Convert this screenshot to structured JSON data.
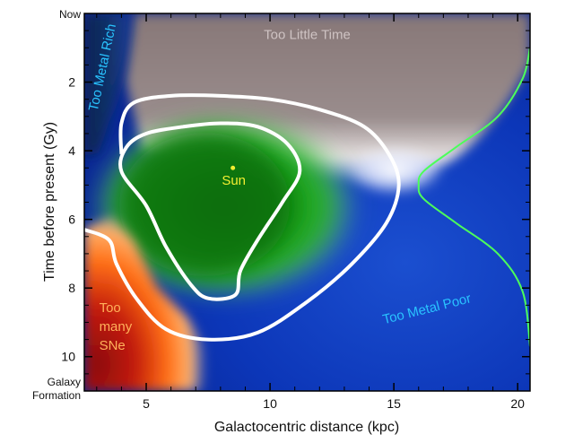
{
  "chart_data": {
    "type": "heatmap",
    "title": "",
    "xlabel": "Galactocentric distance (kpc)",
    "ylabel": "Time before present (Gy)",
    "xlim": [
      2.5,
      20.5
    ],
    "ylim": [
      0,
      11
    ],
    "y_inverted": true,
    "x_ticks": [
      5,
      10,
      15,
      20
    ],
    "y_ticks": [
      2,
      4,
      6,
      8,
      10
    ],
    "y_end_labels": [
      {
        "y": 0,
        "text": "Now"
      },
      {
        "y": 11,
        "text": "Galaxy Formation"
      }
    ],
    "regions": [
      {
        "name": "too_little_time",
        "label": "Too Little Time",
        "color": "#cfc3c3",
        "x": 11.5,
        "y": 0.75
      },
      {
        "name": "too_metal_rich",
        "label": "Too Metal Rich",
        "color": "#29c3ff",
        "x": 3.4,
        "y": 1.6,
        "rotate": -78
      },
      {
        "name": "too_metal_poor",
        "label": "Too Metal Poor",
        "color": "#29c3ff",
        "x": 14.6,
        "y": 9.05,
        "rotate": -14
      },
      {
        "name": "too_many_sne",
        "label": [
          "Too",
          "many",
          "SNe"
        ],
        "color": "#ffb15a",
        "x": 3.1,
        "y": 8.7
      }
    ],
    "sun": {
      "label": "Sun",
      "x": 8.5,
      "y": 4.5,
      "color": "#f2ee31"
    },
    "contours": {
      "outer": [
        [
          4.0,
          4.1
        ],
        [
          4.0,
          3.2
        ],
        [
          4.5,
          2.6
        ],
        [
          6.0,
          2.4
        ],
        [
          8.0,
          2.4
        ],
        [
          10.0,
          2.5
        ],
        [
          12.0,
          2.8
        ],
        [
          13.8,
          3.3
        ],
        [
          14.8,
          4.1
        ],
        [
          15.2,
          5.0
        ],
        [
          14.7,
          6.1
        ],
        [
          13.3,
          7.3
        ],
        [
          11.5,
          8.4
        ],
        [
          9.5,
          9.3
        ],
        [
          7.5,
          9.5
        ],
        [
          5.8,
          9.2
        ],
        [
          4.6,
          8.3
        ],
        [
          3.8,
          7.3
        ],
        [
          3.5,
          6.6
        ],
        [
          2.5,
          6.3
        ]
      ],
      "inner": [
        [
          4.0,
          4.6
        ],
        [
          4.2,
          3.9
        ],
        [
          5.0,
          3.5
        ],
        [
          6.5,
          3.3
        ],
        [
          8.0,
          3.2
        ],
        [
          9.5,
          3.3
        ],
        [
          10.7,
          3.8
        ],
        [
          11.2,
          4.6
        ],
        [
          10.5,
          5.5
        ],
        [
          9.5,
          6.6
        ],
        [
          8.8,
          7.5
        ],
        [
          8.6,
          8.2
        ],
        [
          7.5,
          8.3
        ],
        [
          6.8,
          7.9
        ],
        [
          5.8,
          6.8
        ],
        [
          5.0,
          5.6
        ]
      ],
      "green_curve": [
        [
          20.5,
          1.0
        ],
        [
          20.2,
          1.9
        ],
        [
          19.2,
          3.0
        ],
        [
          17.5,
          3.9
        ],
        [
          16.2,
          4.6
        ],
        [
          16.0,
          5.0
        ],
        [
          16.2,
          5.4
        ],
        [
          17.5,
          6.1
        ],
        [
          19.2,
          7.0
        ],
        [
          20.2,
          8.1
        ],
        [
          20.5,
          9.7
        ]
      ]
    },
    "colors": {
      "disk_blue": "#0c36b8",
      "ghz_green": "#108010",
      "time_gray": "#877777",
      "sne_red": "#a81111",
      "sne_orange": "#ff6f14",
      "contour": "#ffffff",
      "green_curve": "#4cff5a",
      "sun_dot": "#f2ee31"
    }
  }
}
